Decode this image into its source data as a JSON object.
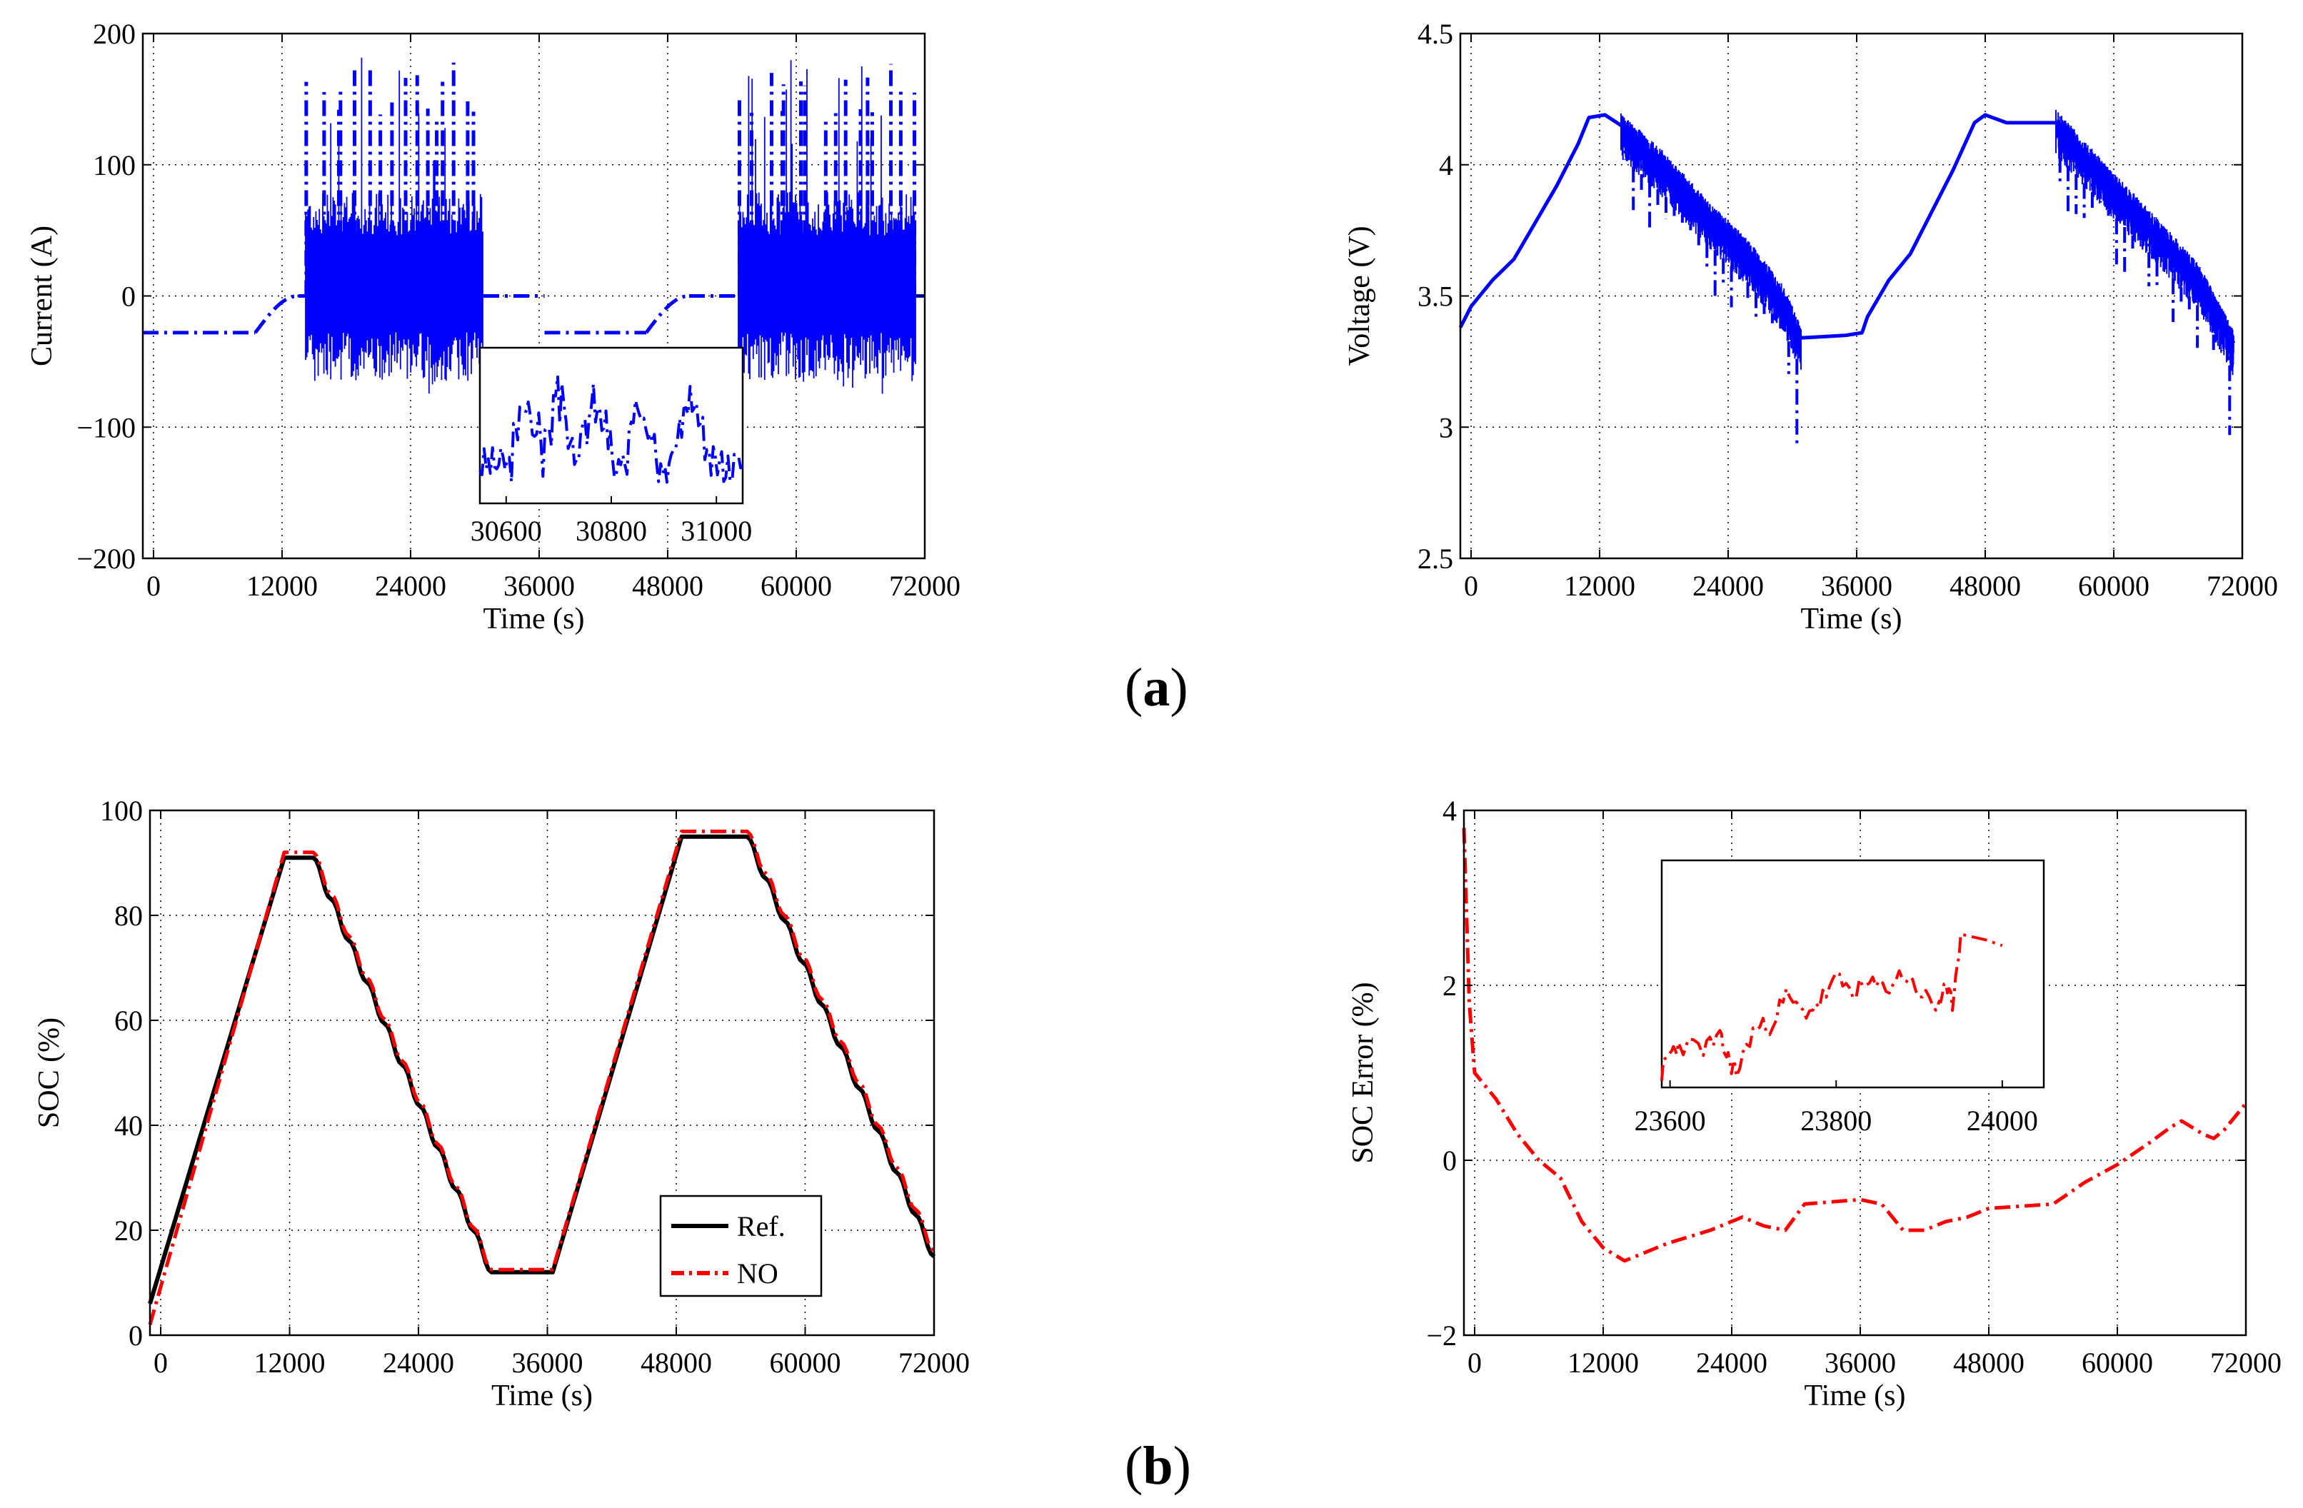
{
  "figure": {
    "caption_a": "(a)",
    "caption_b": "(b)"
  },
  "chart_data": [
    {
      "id": "current",
      "type": "line",
      "title": "",
      "xlabel": "Time (s)",
      "ylabel": "Current (A)",
      "xlim": [
        -1000,
        72000
      ],
      "ylim": [
        -200,
        200
      ],
      "xticks": [
        0,
        12000,
        24000,
        36000,
        48000,
        60000,
        72000
      ],
      "xtick_labels": [
        "0",
        "12000",
        "24000",
        "36000",
        "48000",
        "60000",
        "72000"
      ],
      "yticks": [
        -200,
        -100,
        0,
        100,
        200
      ],
      "ytick_labels": [
        "−200",
        "−100",
        "0",
        "100",
        "200"
      ],
      "grid": true,
      "series": [
        {
          "name": "Current",
          "color": "#0000ff",
          "style": "dash-dot",
          "segments": [
            {
              "kind": "const",
              "x0": -1000,
              "x1": 9500,
              "y": -28
            },
            {
              "kind": "ramp",
              "x0": 9500,
              "x1": 13500,
              "y0": -28,
              "y1": 0
            },
            {
              "kind": "const",
              "x0": 13500,
              "x1": 14200,
              "y": 0
            },
            {
              "kind": "dynamic",
              "x0": 14200,
              "x1": 30800,
              "min": -75,
              "max": 185
            },
            {
              "kind": "const",
              "x0": 30800,
              "x1": 36500,
              "y": 0
            },
            {
              "kind": "const",
              "x0": 36500,
              "x1": 46000,
              "y": -28
            },
            {
              "kind": "ramp",
              "x0": 46000,
              "x1": 50000,
              "y0": -28,
              "y1": 0
            },
            {
              "kind": "const",
              "x0": 50000,
              "x1": 54600,
              "y": 0
            },
            {
              "kind": "dynamic",
              "x0": 54600,
              "x1": 71200,
              "min": -75,
              "max": 185
            },
            {
              "kind": "const",
              "x0": 71200,
              "x1": 72000,
              "y": 0
            }
          ]
        }
      ],
      "inset": {
        "xlim": [
          30550,
          31050
        ],
        "ylim": [
          -30,
          30
        ],
        "xticks": [
          30600,
          30800,
          31000
        ],
        "xtick_labels": [
          "30600",
          "30800",
          "31000"
        ],
        "color": "#0000ff",
        "style": "dash-dot"
      }
    },
    {
      "id": "voltage",
      "type": "line",
      "title": "",
      "xlabel": "Time (s)",
      "ylabel": "Voltage (V)",
      "xlim": [
        -1000,
        72000
      ],
      "ylim": [
        2.5,
        4.5
      ],
      "xticks": [
        0,
        12000,
        24000,
        36000,
        48000,
        60000,
        72000
      ],
      "xtick_labels": [
        "0",
        "12000",
        "24000",
        "36000",
        "48000",
        "60000",
        "72000"
      ],
      "yticks": [
        2.5,
        3,
        3.5,
        4,
        4.5
      ],
      "ytick_labels": [
        "2.5",
        "3",
        "3.5",
        "4",
        "4.5"
      ],
      "grid": true,
      "series": [
        {
          "name": "Voltage",
          "color": "#0000ff",
          "style": "solid",
          "points": [
            [
              -1000,
              3.38
            ],
            [
              0,
              3.46
            ],
            [
              2000,
              3.56
            ],
            [
              4000,
              3.64
            ],
            [
              6000,
              3.78
            ],
            [
              8000,
              3.92
            ],
            [
              10000,
              4.08
            ],
            [
              11000,
              4.18
            ],
            [
              12500,
              4.19
            ],
            [
              14000,
              4.15
            ],
            [
              18000,
              4.0
            ],
            [
              22000,
              3.82
            ],
            [
              26000,
              3.66
            ],
            [
              29000,
              3.5
            ],
            [
              30800,
              3.34
            ],
            [
              35000,
              3.35
            ],
            [
              36500,
              3.36
            ],
            [
              37000,
              3.42
            ],
            [
              39000,
              3.56
            ],
            [
              41000,
              3.66
            ],
            [
              43000,
              3.82
            ],
            [
              45000,
              3.98
            ],
            [
              47000,
              4.16
            ],
            [
              48000,
              4.19
            ],
            [
              50000,
              4.16
            ],
            [
              54600,
              4.16
            ],
            [
              56000,
              4.1
            ],
            [
              60000,
              3.92
            ],
            [
              64000,
              3.75
            ],
            [
              68000,
              3.57
            ],
            [
              71200,
              3.32
            ]
          ],
          "noisy_ranges": [
            [
              14000,
              30800
            ],
            [
              54600,
              71200
            ]
          ],
          "min_spikes": [
            2.93,
            2.97
          ]
        }
      ]
    },
    {
      "id": "soc",
      "type": "line",
      "title": "",
      "xlabel": "Time (s)",
      "ylabel": "SOC (%)",
      "xlim": [
        -1000,
        72000
      ],
      "ylim": [
        0,
        100
      ],
      "xticks": [
        0,
        12000,
        24000,
        36000,
        48000,
        60000,
        72000
      ],
      "xtick_labels": [
        "0",
        "12000",
        "24000",
        "36000",
        "48000",
        "60000",
        "72000"
      ],
      "yticks": [
        0,
        20,
        40,
        60,
        80,
        100
      ],
      "ytick_labels": [
        "0",
        "20",
        "40",
        "60",
        "80",
        "100"
      ],
      "grid": true,
      "legend": {
        "position": "bottom-center",
        "entries": [
          "Ref.",
          "NO"
        ]
      },
      "series": [
        {
          "name": "Ref.",
          "color": "#000000",
          "style": "solid",
          "points": [
            [
              -1000,
              6
            ],
            [
              11500,
              91
            ],
            [
              14200,
              91
            ],
            [
              30800,
              12
            ],
            [
              36500,
              12
            ],
            [
              48500,
              95
            ],
            [
              54600,
              95
            ],
            [
              72000,
              15
            ]
          ]
        },
        {
          "name": "NO",
          "color": "#ff0000",
          "style": "dash-dot",
          "points": [
            [
              -1000,
              2
            ],
            [
              11500,
              92
            ],
            [
              14200,
              92
            ],
            [
              30800,
              12.5
            ],
            [
              36500,
              12.5
            ],
            [
              48500,
              96
            ],
            [
              54600,
              96
            ],
            [
              72000,
              16
            ]
          ]
        }
      ]
    },
    {
      "id": "soc_error",
      "type": "line",
      "title": "",
      "xlabel": "Time (s)",
      "ylabel": "SOC Error (%)",
      "xlim": [
        -1000,
        72000
      ],
      "ylim": [
        -2,
        4
      ],
      "xticks": [
        0,
        12000,
        24000,
        36000,
        48000,
        60000,
        72000
      ],
      "xtick_labels": [
        "0",
        "12000",
        "24000",
        "36000",
        "48000",
        "60000",
        "72000"
      ],
      "yticks": [
        -2,
        0,
        2,
        4
      ],
      "ytick_labels": [
        "−2",
        "0",
        "2",
        "4"
      ],
      "grid": true,
      "series": [
        {
          "name": "SOC Error",
          "color": "#ff0000",
          "style": "dash-dot",
          "points": [
            [
              -1000,
              3.8
            ],
            [
              -500,
              1.8
            ],
            [
              0,
              1.0
            ],
            [
              2000,
              0.7
            ],
            [
              4000,
              0.3
            ],
            [
              6000,
              0.0
            ],
            [
              8000,
              -0.2
            ],
            [
              10000,
              -0.7
            ],
            [
              12000,
              -1.0
            ],
            [
              14000,
              -1.15
            ],
            [
              18000,
              -0.95
            ],
            [
              22000,
              -0.8
            ],
            [
              25000,
              -0.65
            ],
            [
              27000,
              -0.75
            ],
            [
              29000,
              -0.8
            ],
            [
              30800,
              -0.5
            ],
            [
              36000,
              -0.45
            ],
            [
              38000,
              -0.5
            ],
            [
              40000,
              -0.8
            ],
            [
              42000,
              -0.8
            ],
            [
              44000,
              -0.7
            ],
            [
              46000,
              -0.65
            ],
            [
              48000,
              -0.55
            ],
            [
              54000,
              -0.5
            ],
            [
              57000,
              -0.25
            ],
            [
              60000,
              -0.05
            ],
            [
              63000,
              0.2
            ],
            [
              65000,
              0.38
            ],
            [
              66000,
              0.45
            ],
            [
              68000,
              0.3
            ],
            [
              69000,
              0.25
            ],
            [
              70000,
              0.35
            ],
            [
              72000,
              0.65
            ]
          ]
        }
      ],
      "inset": {
        "xlim": [
          23590,
          24050
        ],
        "ylim": [
          -20,
          60
        ],
        "xticks": [
          23600,
          23800,
          24000
        ],
        "xtick_labels": [
          "23600",
          "23800",
          "24000"
        ],
        "color": "#ff0000",
        "style": "dash-dot",
        "points": [
          [
            23590,
            -15
          ],
          [
            23600,
            -8
          ],
          [
            23610,
            -5
          ],
          [
            23640,
            -6
          ],
          [
            23660,
            -3
          ],
          [
            23670,
            -10
          ],
          [
            23680,
            -15
          ],
          [
            23700,
            0
          ],
          [
            23720,
            2
          ],
          [
            23740,
            12
          ],
          [
            23760,
            6
          ],
          [
            23780,
            10
          ],
          [
            23800,
            18
          ],
          [
            23820,
            14
          ],
          [
            23840,
            16
          ],
          [
            23860,
            15
          ],
          [
            23880,
            20
          ],
          [
            23900,
            14
          ],
          [
            23920,
            8
          ],
          [
            23930,
            14
          ],
          [
            23940,
            10
          ],
          [
            23950,
            34
          ],
          [
            23980,
            32
          ],
          [
            24000,
            30
          ]
        ]
      }
    }
  ]
}
